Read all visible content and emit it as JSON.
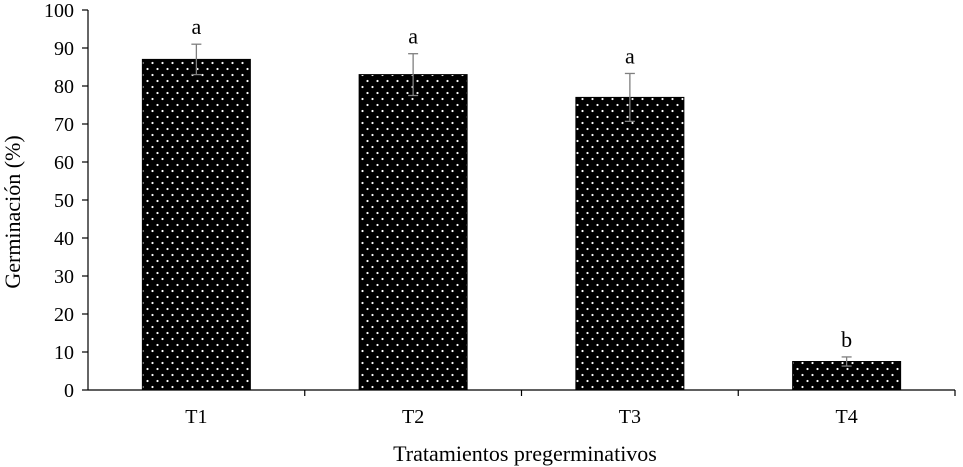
{
  "chart_data": {
    "type": "bar",
    "title": "",
    "xlabel": "Tratamientos pregerminativos",
    "ylabel": "Germinación (%)",
    "ylim": [
      0,
      100
    ],
    "yticks": [
      0,
      10,
      20,
      30,
      40,
      50,
      60,
      70,
      80,
      90,
      100
    ],
    "categories": [
      "T1",
      "T2",
      "T3",
      "T4"
    ],
    "values": [
      87,
      83,
      77,
      7.5
    ],
    "errors": [
      4,
      5.5,
      6.3,
      1.2
    ],
    "significance": [
      "a",
      "a",
      "a",
      "b"
    ],
    "grid": false,
    "legend": "none",
    "bar_color": "#000000",
    "bar_pattern": "white-dots"
  }
}
